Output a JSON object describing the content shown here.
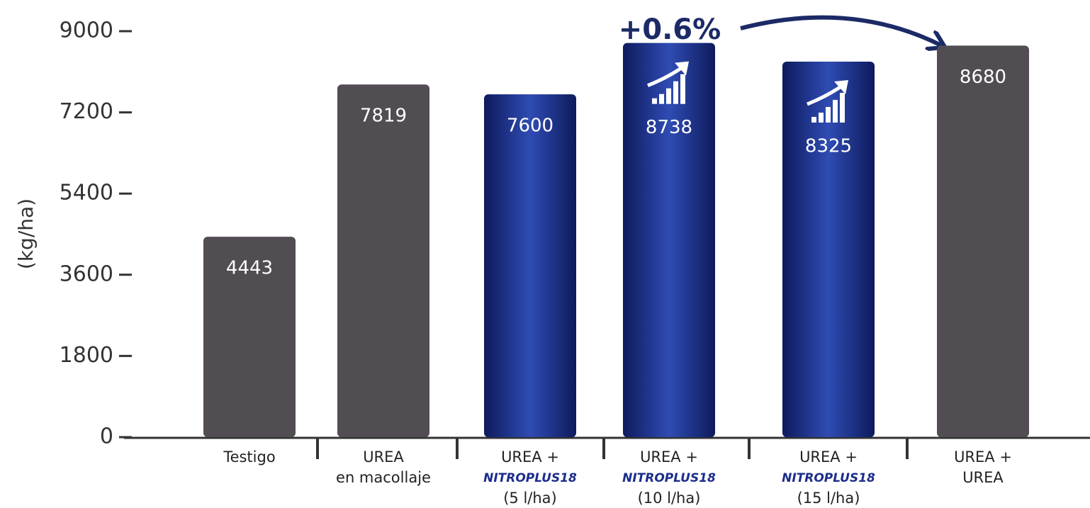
{
  "chart_data": {
    "type": "bar",
    "ylabel": "(kg/ha)",
    "annotation": "+0.6%",
    "categories": [
      [
        "Testigo"
      ],
      [
        "UREA",
        "en macollaje"
      ],
      [
        "UREA +",
        "NITROPLUS18",
        "(5 l/ha)"
      ],
      [
        "UREA +",
        "NITROPLUS18",
        "(10 l/ha)"
      ],
      [
        "UREA +",
        "NITROPLUS18",
        "(15 l/ha)"
      ],
      [
        "UREA +",
        "UREA"
      ]
    ],
    "values": [
      4443,
      7819,
      7600,
      8738,
      8325,
      8680
    ],
    "colors": [
      "#524d52",
      "#524d52",
      "#1f3392",
      "#1f3392",
      "#1f3392",
      "#524d52"
    ],
    "ylim": [
      0,
      9000
    ],
    "yticks": [
      0,
      1800,
      3600,
      5400,
      7200,
      9000
    ]
  }
}
